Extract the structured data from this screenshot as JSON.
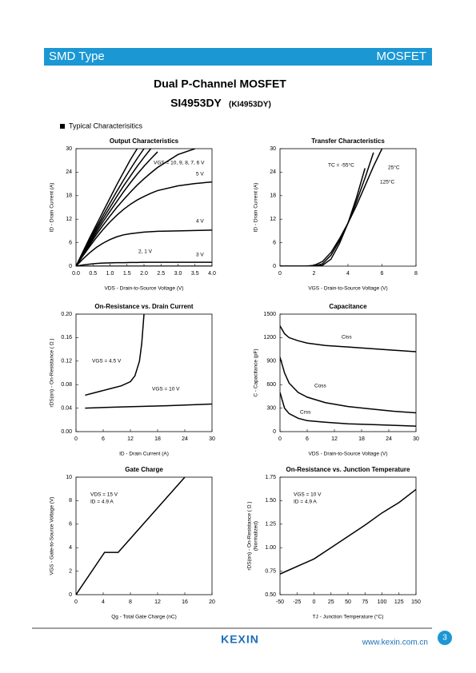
{
  "header": {
    "left": "SMD Type",
    "right": "MOSFET"
  },
  "title": "Dual P-Channel MOSFET",
  "part": "SI4953DY",
  "alt_part": "(KI4953DY)",
  "section": "Typical Characterisitics",
  "chart_data": [
    {
      "type": "line",
      "title": "Output Characteristics",
      "x_label": "VDS - Drain-to-Source Voltage (V)",
      "y_label": "ID - Drain Current (A)",
      "x": [
        0,
        0.2,
        0.4,
        0.6,
        0.8,
        1.0,
        1.2,
        1.4,
        1.6,
        1.8,
        2.0,
        2.2,
        2.4,
        3.0,
        3.5,
        4.0
      ],
      "series": [
        {
          "color": "#000000",
          "values": [
            0,
            3.6,
            7.2,
            10.6,
            14,
            17.4,
            20.8,
            24,
            27.2,
            30,
            null,
            null,
            null,
            null,
            null,
            null
          ]
        },
        {
          "color": "#000000",
          "values": [
            0,
            3.4,
            6.7,
            9.9,
            13,
            16.1,
            19.1,
            22,
            24.8,
            27.5,
            30,
            null,
            null,
            null,
            null,
            null
          ]
        },
        {
          "color": "#000000",
          "values": [
            0,
            3.2,
            6.3,
            9.3,
            12.2,
            15,
            17.8,
            20.5,
            23,
            25.5,
            27.8,
            30,
            null,
            null,
            null,
            null
          ]
        },
        {
          "color": "#000000",
          "values": [
            0,
            3,
            5.9,
            8.7,
            11.4,
            14,
            16.5,
            19,
            21.3,
            23.5,
            25.5,
            27.4,
            29.2,
            null,
            null,
            null
          ]
        },
        {
          "color": "#000000",
          "values": [
            0,
            2.8,
            5.5,
            8.1,
            10.5,
            12.8,
            15,
            17,
            18.9,
            20.7,
            22.3,
            23.8,
            25.2,
            28.5,
            30,
            null
          ]
        },
        {
          "color": "#000000",
          "values": [
            0,
            2.6,
            5,
            7.3,
            9.4,
            11.3,
            13,
            14.5,
            15.8,
            16.9,
            17.8,
            18.6,
            19.3,
            20.5,
            21.1,
            21.5
          ]
        },
        {
          "color": "#000000",
          "values": [
            0,
            1.8,
            3.4,
            4.8,
            5.9,
            6.8,
            7.5,
            8,
            8.3,
            8.5,
            8.7,
            8.8,
            8.9,
            9,
            9.1,
            9.2
          ]
        },
        {
          "color": "#000000",
          "values": [
            0,
            0.3,
            0.5,
            0.7,
            0.8,
            0.85,
            0.9,
            0.9,
            0.95,
            0.95,
            1,
            1,
            1,
            1,
            1,
            1
          ]
        },
        {
          "color": "#000000",
          "values": [
            0,
            0,
            0,
            0,
            0,
            0,
            0,
            0,
            0,
            0,
            0,
            0,
            0,
            0,
            0,
            0
          ]
        }
      ],
      "annotations": [
        "VGS = 10, 9, 8, 7, 6 V",
        "5 V",
        "4 V",
        "3 V",
        "2, 1 V"
      ],
      "xlim": [
        0,
        4
      ],
      "ylim": [
        0,
        30
      ],
      "xticks": [
        {
          "value": 0,
          "label": "0.0"
        },
        0.5,
        {
          "value": 1,
          "label": "1.0"
        },
        1.5,
        {
          "value": 2,
          "label": "2.0"
        },
        2.5,
        {
          "value": 3,
          "label": "3.0"
        },
        3.5,
        {
          "value": 4,
          "label": "4.0"
        }
      ],
      "yticks": [
        0,
        6,
        12,
        18,
        24,
        30
      ]
    },
    {
      "type": "line",
      "title": "Transfer Characteristics",
      "x_label": "VGS - Drain-to-Source Voltage (V)",
      "y_label": "ID - Drain Current (A)",
      "x": [
        0,
        1,
        1.5,
        2,
        2.5,
        3,
        3.5,
        4,
        4.5,
        5,
        5.5,
        6
      ],
      "series": [
        {
          "name": "TC = -55°C",
          "color": "#000000",
          "values": [
            0,
            0,
            0,
            0,
            0.2,
            1.8,
            5.8,
            11,
            17.5,
            25,
            null,
            null
          ]
        },
        {
          "name": "25°C",
          "color": "#000000",
          "values": [
            0,
            0,
            0,
            0,
            0.6,
            2.8,
            6.5,
            11,
            16.5,
            22.5,
            29,
            null
          ]
        },
        {
          "name": "125°C",
          "color": "#000000",
          "values": [
            0,
            0,
            0,
            0.2,
            1.2,
            3.5,
            7,
            11,
            15.5,
            20.5,
            25.5,
            30
          ]
        }
      ],
      "xlim": [
        0,
        8
      ],
      "ylim": [
        0,
        30
      ],
      "xticks": [
        0,
        2,
        4,
        6,
        8
      ],
      "yticks": [
        0,
        6,
        12,
        18,
        24,
        30
      ]
    },
    {
      "type": "line",
      "title": "On-Resistance vs. Drain Current",
      "x_label": "ID - Drain Current (A)",
      "y_label": "rDS(on) - On-Resistance ( Ω )",
      "series": [
        {
          "name": "VGS = 4.5 V",
          "color": "#000000",
          "x": [
            2,
            4,
            6,
            8,
            10,
            12,
            13,
            14,
            14.5,
            15
          ],
          "values": [
            0.062,
            0.066,
            0.07,
            0.074,
            0.078,
            0.085,
            0.095,
            0.12,
            0.15,
            0.2
          ]
        },
        {
          "name": "VGS = 10 V",
          "color": "#000000",
          "x": [
            2,
            10,
            20,
            30
          ],
          "values": [
            0.04,
            0.042,
            0.044,
            0.047
          ]
        }
      ],
      "xlim": [
        0,
        30
      ],
      "ylim": [
        0,
        0.2
      ],
      "xticks": [
        0,
        6,
        12,
        18,
        24,
        30
      ],
      "yticks": [
        {
          "value": 0,
          "label": "0.00"
        },
        0.04,
        {
          "value": 0.08,
          "label": "0.08"
        },
        0.12,
        0.16,
        {
          "value": 0.2,
          "label": "0.20"
        }
      ]
    },
    {
      "type": "line",
      "title": "Capacitance",
      "x_label": "VDS - Drain-to-Source Voltage (V)",
      "y_label": "C - Capacitance (pF)",
      "x": [
        0,
        1,
        2,
        4,
        6,
        10,
        15,
        20,
        25,
        30
      ],
      "series": [
        {
          "name": "Ciss",
          "color": "#000000",
          "values": [
            1350,
            1250,
            1200,
            1160,
            1130,
            1100,
            1080,
            1060,
            1040,
            1020
          ]
        },
        {
          "name": "Coss",
          "color": "#000000",
          "values": [
            950,
            750,
            620,
            500,
            440,
            370,
            320,
            290,
            260,
            240
          ]
        },
        {
          "name": "Crss",
          "color": "#000000",
          "values": [
            500,
            300,
            230,
            170,
            140,
            120,
            100,
            90,
            80,
            70
          ]
        }
      ],
      "xlim": [
        0,
        30
      ],
      "ylim": [
        0,
        1500
      ],
      "xticks": [
        0,
        6,
        12,
        18,
        24,
        30
      ],
      "yticks": [
        0,
        300,
        600,
        900,
        1200,
        1500
      ]
    },
    {
      "type": "line",
      "title": "Gate Charge",
      "x_label": "Qg - Total Gate Charge (nC)",
      "y_label": "VGS - Gate-to-Source Voltage (V)",
      "x": [
        0,
        4.2,
        6.2,
        16
      ],
      "series": [
        {
          "color": "#000000",
          "values": [
            0,
            3.6,
            3.6,
            10
          ]
        }
      ],
      "annotations": [
        "VDS = 15 V",
        "ID = 4.9 A"
      ],
      "xlim": [
        0,
        20
      ],
      "ylim": [
        0,
        10
      ],
      "xticks": [
        0,
        4,
        8,
        12,
        16,
        20
      ],
      "yticks": [
        0,
        2,
        4,
        6,
        8,
        10
      ]
    },
    {
      "type": "line",
      "title": "On-Resistance vs. Junction Temperature",
      "x_label": "TJ - Junction Temperature (°C)",
      "y_label": "rDS(on) - On-Resistance ( Ω )",
      "y_label_2": "(Normalized)",
      "x": [
        -50,
        0,
        25,
        50,
        75,
        100,
        125,
        150
      ],
      "series": [
        {
          "color": "#000000",
          "values": [
            0.72,
            0.88,
            1.0,
            1.12,
            1.24,
            1.37,
            1.48,
            1.62
          ]
        }
      ],
      "annotations": [
        "VGS = 10 V",
        "ID = 4.9 A"
      ],
      "xlim": [
        -50,
        150
      ],
      "ylim": [
        0.5,
        1.75
      ],
      "xticks": [
        -50,
        -25,
        0,
        25,
        50,
        75,
        100,
        125,
        150
      ],
      "yticks": [
        {
          "value": 0.5,
          "label": "0.50"
        },
        0.75,
        {
          "value": 1,
          "label": "1.00"
        },
        1.25,
        {
          "value": 1.5,
          "label": "1.50"
        },
        1.75
      ]
    }
  ],
  "footer": {
    "logo": "KEXIN",
    "url": "www.kexin.com.cn",
    "page": 3
  }
}
